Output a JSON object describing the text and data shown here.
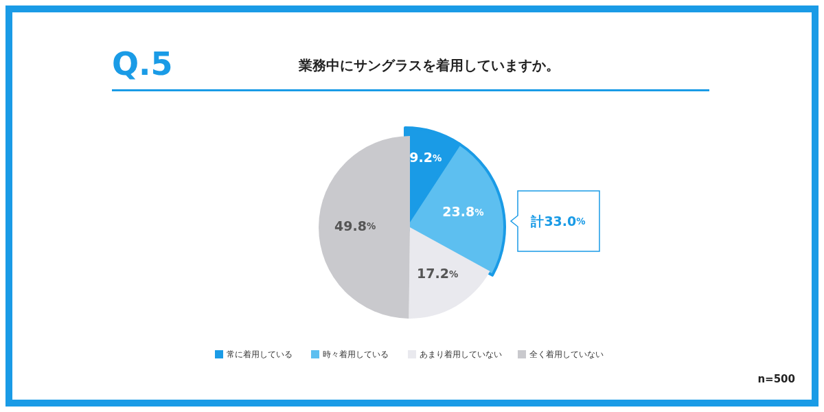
{
  "chart_data": {
    "type": "pie",
    "title": "Q.5",
    "subtitle": "業務中にサングラスを着用していますか。",
    "categories": [
      "常に着用している",
      "時々着用している",
      "あまり着用していない",
      "全く着用していない"
    ],
    "values": [
      9.2,
      23.8,
      17.2,
      49.8
    ],
    "colors": [
      "#1a9be6",
      "#5dbff0",
      "#e9e9ee",
      "#c9c9cd"
    ],
    "value_labels": [
      "9.2%",
      "23.8%",
      "17.2%",
      "49.8%"
    ],
    "legend": "bottom",
    "annotations": [
      "計33.0%",
      "n=500"
    ]
  }
}
